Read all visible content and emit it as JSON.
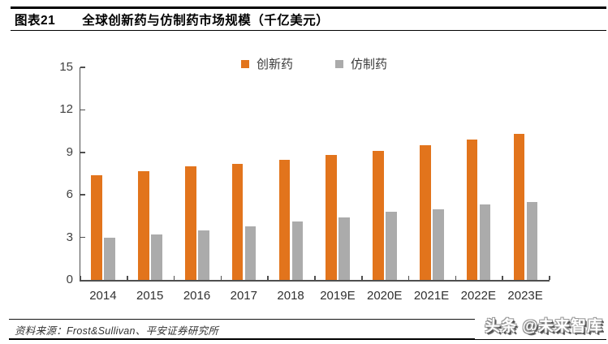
{
  "header": {
    "figure_label": "图表21",
    "title": "全球创新药与仿制药市场规模（千亿美元）"
  },
  "chart_data": {
    "type": "bar",
    "title": "全球创新药与仿制药市场规模（千亿美元）",
    "categories": [
      "2014",
      "2015",
      "2016",
      "2017",
      "2018",
      "2019E",
      "2020E",
      "2021E",
      "2022E",
      "2023E"
    ],
    "series": [
      {
        "name": "创新药",
        "color": "#E2741C",
        "values": [
          7.4,
          7.7,
          8.0,
          8.2,
          8.5,
          8.8,
          9.1,
          9.5,
          9.9,
          10.3
        ]
      },
      {
        "name": "仿制药",
        "color": "#ABABAB",
        "values": [
          3.0,
          3.2,
          3.5,
          3.8,
          4.1,
          4.4,
          4.8,
          5.0,
          5.3,
          5.5
        ]
      }
    ],
    "xlabel": "",
    "ylabel": "",
    "ylim": [
      0,
      15
    ],
    "yticks": [
      0,
      3,
      6,
      9,
      12,
      15
    ],
    "legend_position": "top-center",
    "grid": false,
    "axis_color": "#4f4f4f"
  },
  "footer": {
    "source": "资料来源：Frost&Sullivan、平安证券研究所",
    "watermark": "头条 @未来智库"
  }
}
